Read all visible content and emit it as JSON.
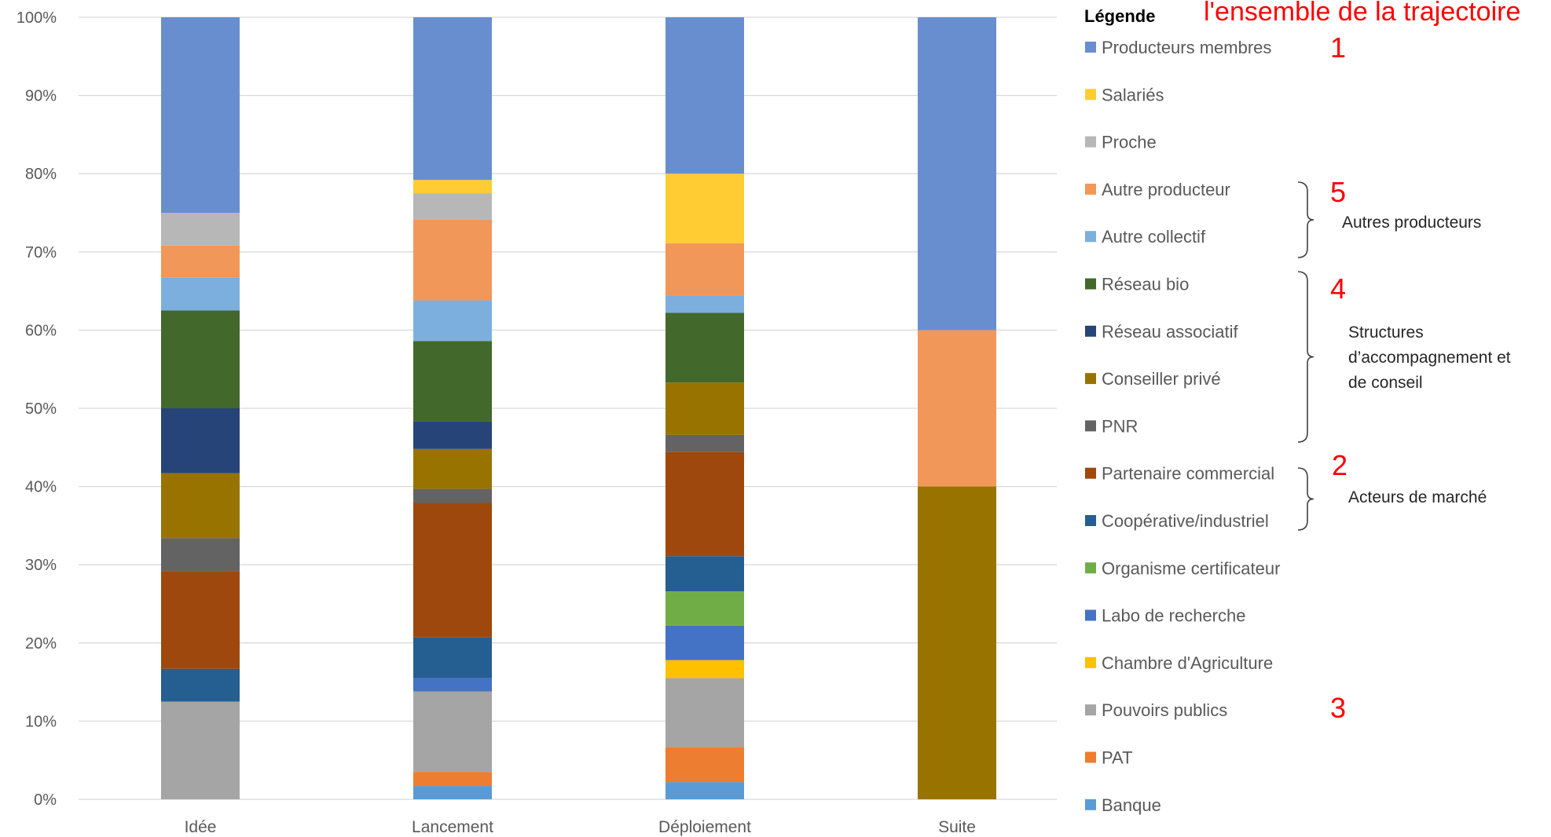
{
  "chart_data": {
    "type": "bar",
    "stacked": true,
    "categories": [
      "Idée",
      "Lancement",
      "Déploiement",
      "Suite"
    ],
    "y_ticks": [
      "0%",
      "10%",
      "20%",
      "30%",
      "40%",
      "50%",
      "60%",
      "70%",
      "80%",
      "90%",
      "100%"
    ],
    "ylim": [
      0,
      100
    ],
    "grid": true,
    "legend_title": "Légende",
    "legend_placement": "right",
    "series": [
      {
        "name": "Banque",
        "color": "#5B9BD5",
        "values": [
          0,
          1.7,
          2.2,
          0
        ]
      },
      {
        "name": "PAT",
        "color": "#ED7D31",
        "values": [
          0,
          1.8,
          4.5,
          0
        ]
      },
      {
        "name": "Pouvoirs publics",
        "color": "#A5A5A5",
        "values": [
          12.5,
          10.3,
          8.8,
          0
        ]
      },
      {
        "name": "Chambre d'Agriculture",
        "color": "#FFC000",
        "values": [
          0,
          0,
          2.3,
          0
        ]
      },
      {
        "name": "Labo de recherche",
        "color": "#4472C4",
        "values": [
          0,
          1.7,
          4.4,
          0
        ]
      },
      {
        "name": "Organisme certificateur",
        "color": "#70AD47",
        "values": [
          0,
          0,
          4.4,
          0
        ]
      },
      {
        "name": "Coopérative/industriel",
        "color": "#255E91",
        "values": [
          4.2,
          5.2,
          4.5,
          0
        ]
      },
      {
        "name": "Partenaire commercial",
        "color": "#9E480E",
        "values": [
          12.5,
          17.2,
          13.3,
          0
        ]
      },
      {
        "name": "PNR",
        "color": "#636363",
        "values": [
          4.2,
          1.8,
          2.2,
          0
        ]
      },
      {
        "name": "Conseiller privé",
        "color": "#997300",
        "values": [
          8.3,
          5.1,
          6.7,
          40
        ]
      },
      {
        "name": "Réseau associatif",
        "color": "#264478",
        "values": [
          8.3,
          3.5,
          0,
          0
        ]
      },
      {
        "name": "Réseau bio",
        "color": "#43682B",
        "values": [
          12.5,
          10.3,
          8.9,
          0
        ]
      },
      {
        "name": "Autre collectif",
        "color": "#7CAFDD",
        "values": [
          4.2,
          5.2,
          2.2,
          0
        ]
      },
      {
        "name": "Autre producteur",
        "color": "#F1975A",
        "values": [
          4.1,
          10.3,
          6.7,
          20
        ]
      },
      {
        "name": "Proche",
        "color": "#B7B7B7",
        "values": [
          4.2,
          3.4,
          0,
          0
        ]
      },
      {
        "name": "Salariés",
        "color": "#FFCD33",
        "values": [
          0,
          1.7,
          8.9,
          0
        ]
      },
      {
        "name": "Producteurs membres",
        "color": "#698ED0",
        "values": [
          25,
          20.8,
          20,
          40
        ]
      }
    ]
  },
  "annotations": {
    "header_text": "l'ensemble de la trajectoire",
    "groups": [
      {
        "number": "1"
      },
      {
        "number": "5",
        "label": [
          "Autres producteurs"
        ]
      },
      {
        "number": "4",
        "label": [
          "Structures",
          "d’accompagnement et",
          "de conseil"
        ]
      },
      {
        "number": "2",
        "label": [
          "Acteurs de marché"
        ]
      },
      {
        "number": "3"
      }
    ]
  }
}
